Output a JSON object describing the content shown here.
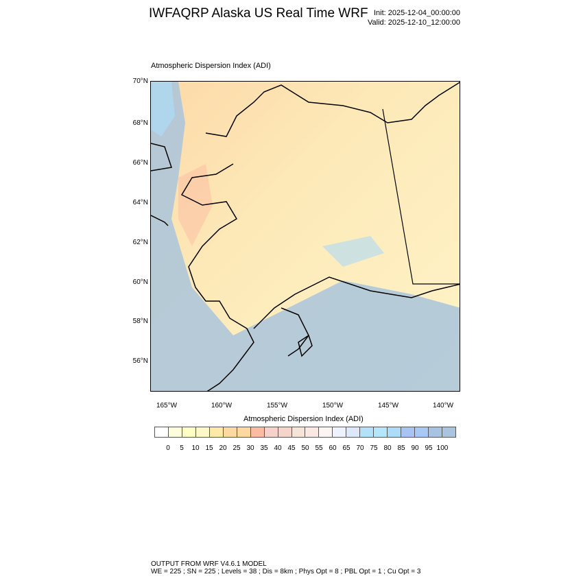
{
  "header": {
    "title": "IWFAQRP Alaska US Real Time WRF",
    "init": "Init: 2025-12-04_00:00:00",
    "valid": "Valid: 2025-12-10_12:00:00"
  },
  "map": {
    "subtitle": "Atmospheric Dispersion Index   (ADI)",
    "lat_labels": [
      "70°N",
      "68°N",
      "66°N",
      "64°N",
      "62°N",
      "60°N",
      "58°N",
      "56°N"
    ],
    "lon_labels": [
      "165°W",
      "160°W",
      "155°W",
      "150°W",
      "145°W",
      "140°W"
    ]
  },
  "colorbar": {
    "title": "Atmospheric Dispersion Index  (ADI)",
    "colors": [
      "#ffffff",
      "#fefedc",
      "#fefec6",
      "#fdf7c9",
      "#fdeaa8",
      "#fdd9a2",
      "#fdd8a0",
      "#fbbba2",
      "#f4d2c9",
      "#f5d5ca",
      "#f6e4d9",
      "#fae9e3",
      "#fdf4f4",
      "#eef2fc",
      "#dde9fb",
      "#b4e1f8",
      "#b5e6fb",
      "#aedbf7",
      "#a7c4f2",
      "#a9c8f4",
      "#a8c3e2",
      "#a9c4dc"
    ],
    "labels": [
      "0",
      "5",
      "10",
      "15",
      "20",
      "25",
      "30",
      "35",
      "40",
      "45",
      "50",
      "55",
      "60",
      "65",
      "70",
      "75",
      "80",
      "85",
      "90",
      "95",
      "100"
    ]
  },
  "footer": {
    "line1": "OUTPUT FROM WRF V4.6.1 MODEL",
    "line2": "WE = 225 ; SN = 225 ; Levels = 38 ; Dis = 8km ; Phys Opt = 8 ; PBL Opt = 1 ; Cu Opt = 3"
  }
}
